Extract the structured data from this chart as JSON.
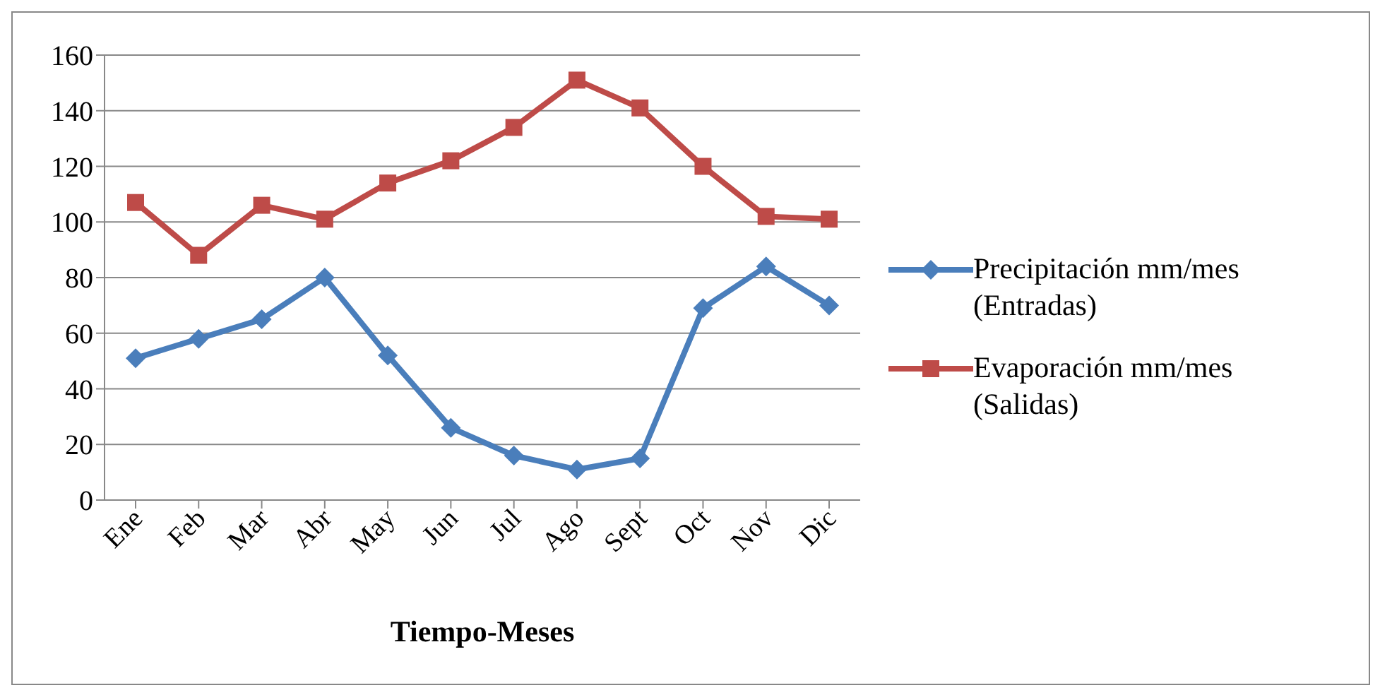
{
  "chart_data": {
    "type": "line",
    "xlabel": "Tiempo-Meses",
    "categories": [
      "Ene",
      "Feb",
      "Mar",
      "Abr",
      "May",
      "Jun",
      "Jul",
      "Ago",
      "Sept",
      "Oct",
      "Nov",
      "Dic"
    ],
    "series": [
      {
        "name": "Precipitación mm/mes (Entradas)",
        "color": "#4a7ebb",
        "marker": "diamond",
        "values": [
          51,
          58,
          65,
          80,
          52,
          26,
          16,
          11,
          15,
          69,
          84,
          70
        ]
      },
      {
        "name": "Evaporación mm/mes (Salidas)",
        "color": "#be4b48",
        "marker": "square",
        "values": [
          107,
          88,
          106,
          101,
          114,
          122,
          134,
          151,
          141,
          120,
          102,
          101
        ]
      }
    ],
    "ylim": [
      0,
      160
    ],
    "yticks": [
      0,
      20,
      40,
      60,
      80,
      100,
      120,
      140,
      160
    ],
    "grid": "y",
    "legend": "right",
    "line_style": "solid"
  }
}
